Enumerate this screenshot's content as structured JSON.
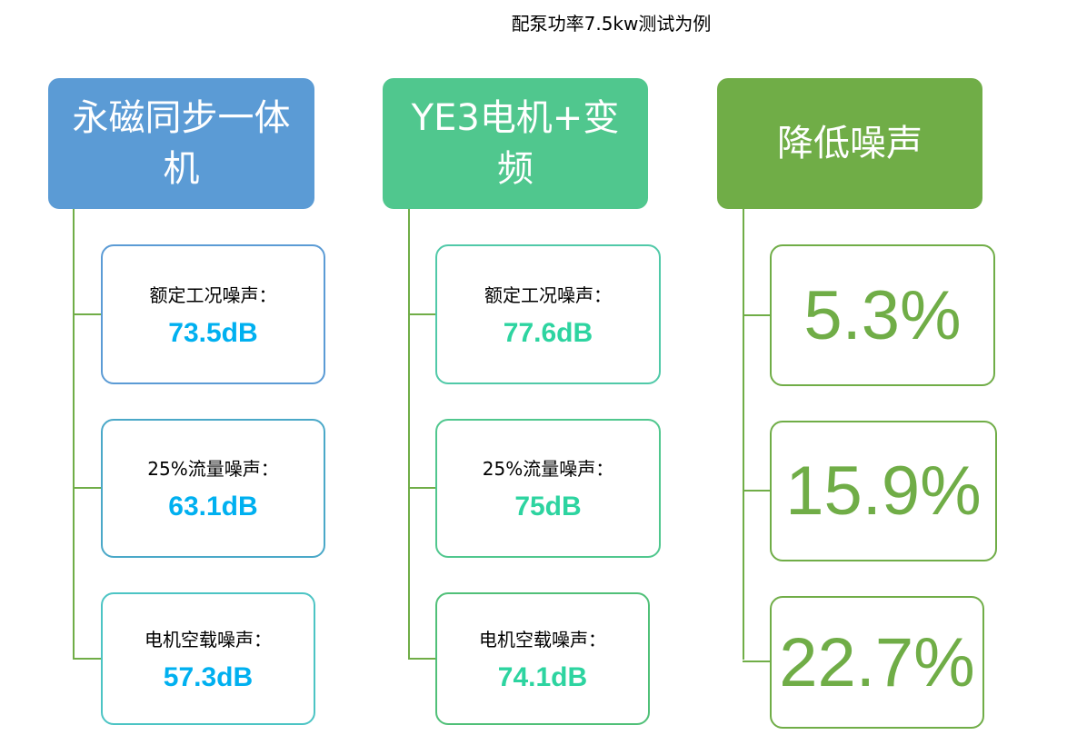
{
  "title": "配泵功率7.5kw测试为例",
  "columns": [
    {
      "header": "永磁同步一体机",
      "color": "#5b9bd5",
      "items": [
        {
          "label": "额定工况噪声：",
          "value": "73.5dB"
        },
        {
          "label": "25%流量噪声：",
          "value": "63.1dB"
        },
        {
          "label": "电机空载噪声：",
          "value": "57.3dB"
        }
      ],
      "value_color": "#00b0f0"
    },
    {
      "header": "YE3电机+变频",
      "color": "#50c78e",
      "items": [
        {
          "label": "额定工况噪声：",
          "value": "77.6dB"
        },
        {
          "label": "25%流量噪声：",
          "value": "75dB"
        },
        {
          "label": "电机空载噪声：",
          "value": "74.1dB"
        }
      ],
      "value_color": "#2dd4a0"
    },
    {
      "header": "降低噪声",
      "color": "#70ad47",
      "items": [
        {
          "value": "5.3%"
        },
        {
          "value": "15.9%"
        },
        {
          "value": "22.7%"
        }
      ]
    }
  ]
}
